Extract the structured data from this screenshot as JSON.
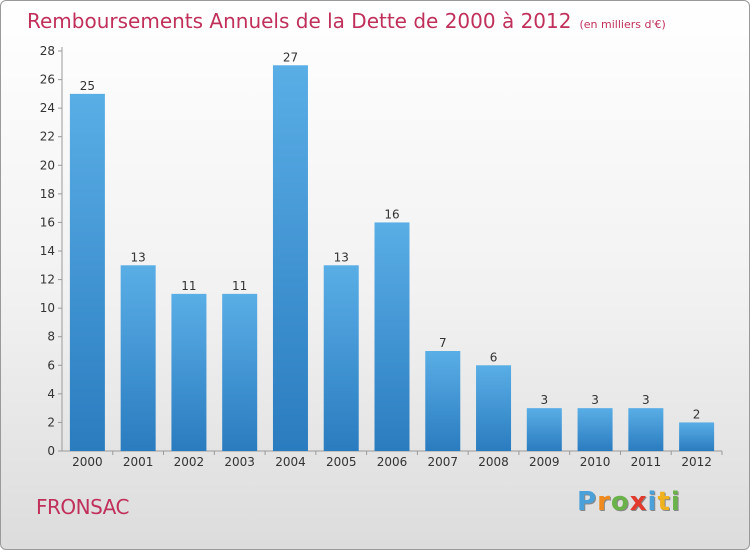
{
  "header": {
    "title": "Remboursements Annuels de la Dette de 2000 à 2012",
    "subtitle": "(en milliers d'€)"
  },
  "commune": "FRONSAC",
  "logo": {
    "letters": [
      "P",
      "r",
      "o",
      "x",
      "i",
      "t",
      "i"
    ],
    "colors": [
      "#4aa0d8",
      "#f08a1c",
      "#6ab24a",
      "#e23a2c",
      "#4aa0d8",
      "#f0b21c",
      "#6ab24a"
    ]
  },
  "colors": {
    "bar_light": "#5aaee6",
    "bar_dark": "#2a7cbf",
    "title": "#c0305a"
  },
  "chart_data": {
    "type": "bar",
    "title": "Remboursements Annuels de la Dette de 2000 à 2012",
    "categories": [
      "2000",
      "2001",
      "2002",
      "2003",
      "2004",
      "2005",
      "2006",
      "2007",
      "2008",
      "2009",
      "2010",
      "2011",
      "2012"
    ],
    "values": [
      25,
      13,
      11,
      11,
      27,
      13,
      16,
      7,
      6,
      3,
      3,
      3,
      2
    ],
    "ylim": [
      0,
      28
    ],
    "yticks": [
      0,
      2,
      4,
      6,
      8,
      10,
      12,
      14,
      16,
      18,
      20,
      22,
      24,
      26,
      28
    ],
    "grid": false,
    "data_labels": true
  }
}
